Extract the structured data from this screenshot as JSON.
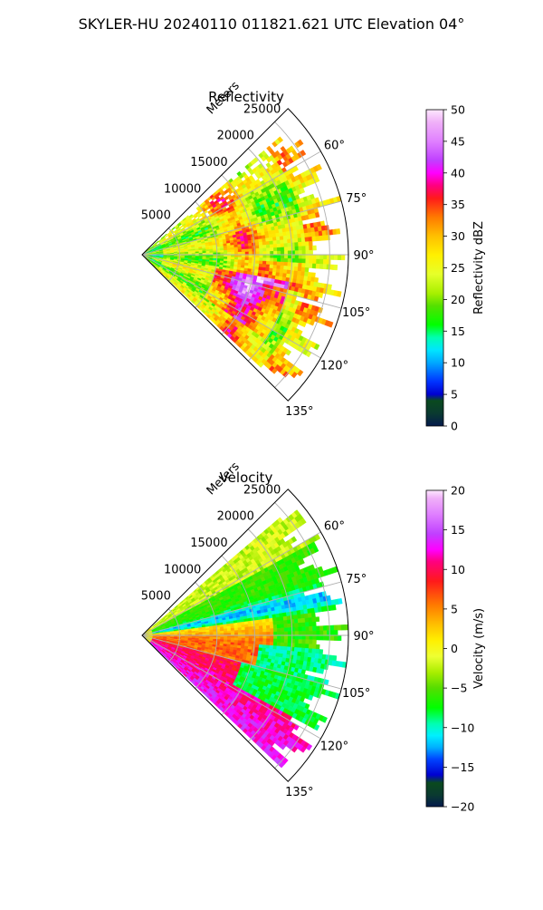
{
  "figure": {
    "suptitle": "SKYLER-HU  20240110  011821.621 UTC Elevation 04°"
  },
  "colors": {
    "grid": "#b0b0b0",
    "frame": "#000000"
  },
  "chart_data": [
    {
      "type": "heatmap",
      "projection": "polar-sector",
      "title": "Reflectivity",
      "field": "reflectivity",
      "theta_ticks_deg": [
        60,
        75,
        90,
        105,
        120,
        135
      ],
      "theta_tick_labels": [
        "60°",
        "75°",
        "90°",
        "105°",
        "120°",
        "135°"
      ],
      "sector_deg": [
        45,
        135
      ],
      "r_ticks": [
        5000,
        10000,
        15000,
        20000,
        25000
      ],
      "r_tick_labels": [
        "5000",
        "10000",
        "15000",
        "20000",
        "25000"
      ],
      "r_max": 27500,
      "r_label": "Meters",
      "grid": true,
      "colorbar": {
        "label": "Reflectivity dBZ",
        "range": [
          0,
          50
        ],
        "ticks": [
          0,
          5,
          10,
          15,
          20,
          25,
          30,
          35,
          40,
          45,
          50
        ],
        "tick_labels": [
          "0",
          "5",
          "10",
          "15",
          "20",
          "25",
          "30",
          "35",
          "40",
          "45",
          "50"
        ],
        "stops": [
          {
            "v": 0,
            "c": "#041a4c"
          },
          {
            "v": 2,
            "c": "#0a3a30"
          },
          {
            "v": 4,
            "c": "#0a4a1e"
          },
          {
            "v": 5,
            "c": "#0000d0"
          },
          {
            "v": 7,
            "c": "#0033ff"
          },
          {
            "v": 10,
            "c": "#00a8ff"
          },
          {
            "v": 12,
            "c": "#00e5ff"
          },
          {
            "v": 14,
            "c": "#00ffb0"
          },
          {
            "v": 16,
            "c": "#00ff00"
          },
          {
            "v": 19,
            "c": "#55e000"
          },
          {
            "v": 21,
            "c": "#a8f000"
          },
          {
            "v": 24,
            "c": "#e6ff2a"
          },
          {
            "v": 27,
            "c": "#fff000"
          },
          {
            "v": 30,
            "c": "#ffc000"
          },
          {
            "v": 33,
            "c": "#ff7a00"
          },
          {
            "v": 36,
            "c": "#ff1a1a"
          },
          {
            "v": 38,
            "c": "#ff0080"
          },
          {
            "v": 40,
            "c": "#ff00ff"
          },
          {
            "v": 42,
            "c": "#c040ff"
          },
          {
            "v": 45,
            "c": "#e080ff"
          },
          {
            "v": 48,
            "c": "#f0b0f8"
          },
          {
            "v": 50,
            "c": "#fde8ff"
          }
        ]
      }
    },
    {
      "type": "heatmap",
      "projection": "polar-sector",
      "title": "Velocity",
      "field": "velocity",
      "theta_ticks_deg": [
        60,
        75,
        90,
        105,
        120,
        135
      ],
      "theta_tick_labels": [
        "60°",
        "75°",
        "90°",
        "105°",
        "120°",
        "135°"
      ],
      "sector_deg": [
        45,
        135
      ],
      "r_ticks": [
        5000,
        10000,
        15000,
        20000,
        25000
      ],
      "r_tick_labels": [
        "5000",
        "10000",
        "15000",
        "20000",
        "25000"
      ],
      "r_max": 27500,
      "r_label": "Meters",
      "grid": true,
      "colorbar": {
        "label": "Velocity (m/s)",
        "range": [
          -20,
          20
        ],
        "ticks": [
          -20,
          -15,
          -10,
          -5,
          0,
          5,
          10,
          15,
          20
        ],
        "tick_labels": [
          "−20",
          "−15",
          "−10",
          "−5",
          "0",
          "5",
          "10",
          "15",
          "20"
        ],
        "stops": [
          {
            "v": -20,
            "c": "#041a4c"
          },
          {
            "v": -18.5,
            "c": "#0a3a30"
          },
          {
            "v": -17,
            "c": "#0a4a1e"
          },
          {
            "v": -16,
            "c": "#0000d0"
          },
          {
            "v": -14,
            "c": "#0044ff"
          },
          {
            "v": -12.5,
            "c": "#00b0ff"
          },
          {
            "v": -11,
            "c": "#00f0ff"
          },
          {
            "v": -9.5,
            "c": "#00ffb0"
          },
          {
            "v": -7.5,
            "c": "#00ff00"
          },
          {
            "v": -5,
            "c": "#55dd00"
          },
          {
            "v": -3,
            "c": "#aaee00"
          },
          {
            "v": -1,
            "c": "#eeff33"
          },
          {
            "v": 1,
            "c": "#fff000"
          },
          {
            "v": 3,
            "c": "#ffc000"
          },
          {
            "v": 5.5,
            "c": "#ff7a00"
          },
          {
            "v": 8.5,
            "c": "#ff1a1a"
          },
          {
            "v": 11,
            "c": "#ff0080"
          },
          {
            "v": 12.5,
            "c": "#ff00ff"
          },
          {
            "v": 14.5,
            "c": "#c040ff"
          },
          {
            "v": 17,
            "c": "#e080ff"
          },
          {
            "v": 19,
            "c": "#f0b0f8"
          },
          {
            "v": 20,
            "c": "#fde8ff"
          }
        ]
      }
    }
  ]
}
